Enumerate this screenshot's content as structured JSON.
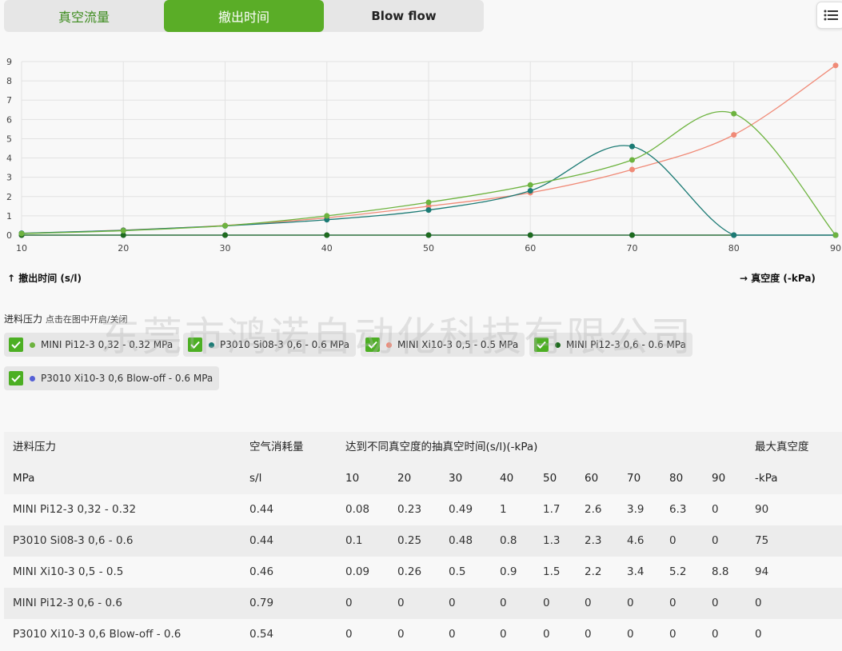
{
  "tabs": [
    {
      "label": "真空流量"
    },
    {
      "label": "撤出时间"
    },
    {
      "label": "Blow flow"
    }
  ],
  "chart_data": {
    "type": "line",
    "x": [
      10,
      20,
      30,
      40,
      50,
      60,
      70,
      80,
      90
    ],
    "xlim": [
      10,
      90
    ],
    "ylim": [
      0,
      9
    ],
    "yticks": [
      0,
      1,
      2,
      3,
      4,
      5,
      6,
      7,
      8,
      9
    ],
    "xlabel": "→ 真空度 (-kPa)",
    "ylabel": "↑ 撤出时间 (s/l)",
    "grid": true,
    "series": [
      {
        "name": "MINI Pi12-3 0,32 - 0.32 MPa",
        "color": "#6db33f",
        "values": [
          0.08,
          0.23,
          0.49,
          1,
          1.7,
          2.6,
          3.9,
          6.3,
          0
        ]
      },
      {
        "name": "P3010 Si08-3 0,6 - 0.6 MPa",
        "color": "#1b7a74",
        "values": [
          0.1,
          0.25,
          0.48,
          0.8,
          1.3,
          2.3,
          4.6,
          0,
          0
        ]
      },
      {
        "name": "MINI Xi10-3 0,5 - 0.5 MPa",
        "color": "#f08a77",
        "values": [
          0.09,
          0.26,
          0.5,
          0.9,
          1.5,
          2.2,
          3.4,
          5.2,
          8.8
        ]
      },
      {
        "name": "MINI Pi12-3 0,6 - 0.6 MPa",
        "color": "#1e6b1e",
        "values": [
          0,
          0,
          0,
          0,
          0,
          0,
          0,
          0,
          0
        ]
      },
      {
        "name": "P3010 Xi10-3 0,6 Blow-off - 0.6 MPa",
        "color": "#5560d6",
        "values": [
          0,
          0,
          0,
          0,
          0,
          0,
          0,
          0,
          0
        ]
      }
    ]
  },
  "legend": {
    "title": "进料压力",
    "hint": "点击在图中开启/关闭"
  },
  "watermark": "东莞市鸿诺自动化科技有限公司",
  "table": {
    "header1": {
      "name": "进料压力",
      "air": "空气消耗量",
      "times": "达到不同真空度的抽真空时间(s/l)(-kPa)",
      "max": "最大真空度"
    },
    "header2": {
      "name": "MPa",
      "air": "s/l",
      "cols": [
        "10",
        "20",
        "30",
        "40",
        "50",
        "60",
        "70",
        "80",
        "90"
      ],
      "max": "-kPa"
    },
    "rows": [
      {
        "name": "MINI Pi12-3 0,32 - 0.32",
        "air": "0.44",
        "vals": [
          "0.08",
          "0.23",
          "0.49",
          "1",
          "1.7",
          "2.6",
          "3.9",
          "6.3",
          "0"
        ],
        "max": "90"
      },
      {
        "name": "P3010 Si08-3 0,6 - 0.6",
        "air": "0.44",
        "vals": [
          "0.1",
          "0.25",
          "0.48",
          "0.8",
          "1.3",
          "2.3",
          "4.6",
          "0",
          "0"
        ],
        "max": "75"
      },
      {
        "name": "MINI Xi10-3 0,5 - 0.5",
        "air": "0.46",
        "vals": [
          "0.09",
          "0.26",
          "0.5",
          "0.9",
          "1.5",
          "2.2",
          "3.4",
          "5.2",
          "8.8"
        ],
        "max": "94"
      },
      {
        "name": "MINI Pi12-3 0,6 - 0.6",
        "air": "0.79",
        "vals": [
          "0",
          "0",
          "0",
          "0",
          "0",
          "0",
          "0",
          "0",
          "0"
        ],
        "max": "0"
      },
      {
        "name": "P3010 Xi10-3 0,6 Blow-off - 0.6",
        "air": "0.54",
        "vals": [
          "0",
          "0",
          "0",
          "0",
          "0",
          "0",
          "0",
          "0",
          "0"
        ],
        "max": "0"
      }
    ]
  }
}
